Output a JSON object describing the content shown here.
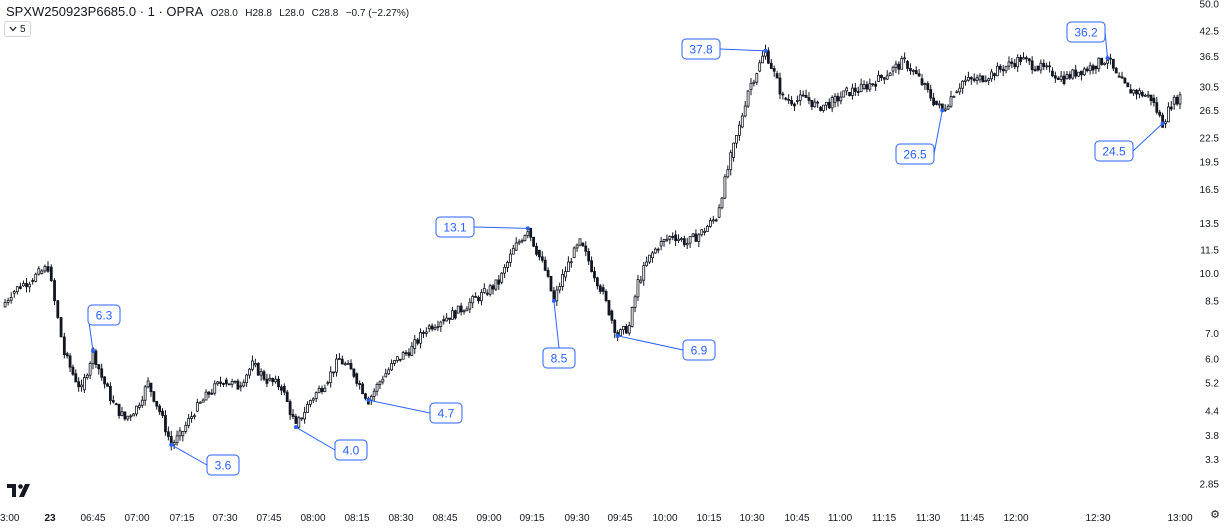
{
  "legend": {
    "symbol": "SPXW250923P6685.0 · 1 · OPRA",
    "o_label": "O",
    "o": "28.0",
    "h_label": "H",
    "h": "28.8",
    "l_label": "L",
    "l": "28.0",
    "c_label": "C",
    "c": "28.8",
    "change": "−0.7 (−2.27%)"
  },
  "indicator_toggle": {
    "label": "5",
    "icon": "chevron-down-icon"
  },
  "colors": {
    "candle": "#131722",
    "callout": "#2962ff",
    "axis_text": "#131722"
  },
  "chart_data": {
    "type": "candlestick",
    "y_scale": "log",
    "ylim": [
      2.7,
      50.0
    ],
    "y_ticks": [
      "50.0",
      "42.5",
      "36.5",
      "30.5",
      "26.5",
      "22.5",
      "19.5",
      "16.5",
      "13.5",
      "11.5",
      "10.0",
      "8.5",
      "7.0",
      "6.0",
      "5.2",
      "4.4",
      "3.8",
      "3.3",
      "2.85"
    ],
    "x_ticks": [
      "3:00",
      "23",
      "06:45",
      "07:00",
      "07:15",
      "07:30",
      "07:45",
      "08:00",
      "08:15",
      "08:30",
      "08:45",
      "09:00",
      "09:15",
      "09:30",
      "09:45",
      "10:00",
      "10:15",
      "10:30",
      "10:45",
      "11:00",
      "11:15",
      "11:30",
      "11:45",
      "12:00",
      "12:30",
      "13:00"
    ],
    "path": [
      [
        "03:00",
        8.2
      ],
      [
        "03:03",
        8.9
      ],
      [
        "03:06",
        9.3
      ],
      [
        "03:09",
        9.6
      ],
      [
        "03:12",
        10.0
      ],
      [
        "03:15",
        10.4
      ],
      [
        "06:35",
        6.2
      ],
      [
        "06:38",
        5.5
      ],
      [
        "06:41",
        5.0
      ],
      [
        "06:45",
        6.3
      ],
      [
        "06:48",
        5.4
      ],
      [
        "06:52",
        4.6
      ],
      [
        "06:56",
        4.2
      ],
      [
        "07:00",
        4.5
      ],
      [
        "07:04",
        5.2
      ],
      [
        "07:08",
        4.4
      ],
      [
        "07:12",
        3.6
      ],
      [
        "07:15",
        3.8
      ],
      [
        "07:20",
        4.4
      ],
      [
        "07:25",
        4.9
      ],
      [
        "07:30",
        5.3
      ],
      [
        "07:35",
        5.1
      ],
      [
        "07:40",
        5.8
      ],
      [
        "07:45",
        5.3
      ],
      [
        "07:50",
        5.1
      ],
      [
        "07:55",
        4.0
      ],
      [
        "08:00",
        4.7
      ],
      [
        "08:05",
        5.2
      ],
      [
        "08:10",
        6.0
      ],
      [
        "08:15",
        5.5
      ],
      [
        "08:20",
        4.7
      ],
      [
        "08:25",
        5.4
      ],
      [
        "08:30",
        6.0
      ],
      [
        "08:35",
        6.4
      ],
      [
        "08:40",
        7.2
      ],
      [
        "08:45",
        7.6
      ],
      [
        "08:50",
        7.9
      ],
      [
        "08:55",
        8.4
      ],
      [
        "09:00",
        8.9
      ],
      [
        "09:05",
        9.5
      ],
      [
        "09:10",
        11.5
      ],
      [
        "09:15",
        13.1
      ],
      [
        "09:18",
        11.5
      ],
      [
        "09:21",
        10.2
      ],
      [
        "09:24",
        8.5
      ],
      [
        "09:27",
        9.8
      ],
      [
        "09:30",
        11.0
      ],
      [
        "09:33",
        12.0
      ],
      [
        "09:36",
        10.8
      ],
      [
        "09:40",
        9.2
      ],
      [
        "09:43",
        8.0
      ],
      [
        "09:46",
        6.9
      ],
      [
        "09:50",
        7.3
      ],
      [
        "09:53",
        9.5
      ],
      [
        "09:57",
        11.0
      ],
      [
        "10:00",
        11.8
      ],
      [
        "10:05",
        12.6
      ],
      [
        "10:10",
        12.0
      ],
      [
        "10:15",
        12.8
      ],
      [
        "10:20",
        14.0
      ],
      [
        "10:25",
        20.0
      ],
      [
        "10:28",
        24.0
      ],
      [
        "10:31",
        30.0
      ],
      [
        "10:34",
        33.5
      ],
      [
        "10:37",
        37.8
      ],
      [
        "10:40",
        33.0
      ],
      [
        "10:43",
        28.5
      ],
      [
        "10:47",
        28.0
      ],
      [
        "10:51",
        28.6
      ],
      [
        "10:55",
        27.0
      ],
      [
        "11:00",
        27.8
      ],
      [
        "11:05",
        29.5
      ],
      [
        "11:10",
        30.2
      ],
      [
        "11:15",
        31.5
      ],
      [
        "11:20",
        33.5
      ],
      [
        "11:25",
        35.5
      ],
      [
        "11:30",
        32.0
      ],
      [
        "11:35",
        28.0
      ],
      [
        "11:38",
        26.5
      ],
      [
        "11:42",
        29.5
      ],
      [
        "11:45",
        31.5
      ],
      [
        "11:50",
        31.8
      ],
      [
        "11:55",
        33.0
      ],
      [
        "12:00",
        34.5
      ],
      [
        "12:05",
        36.0
      ],
      [
        "12:10",
        34.5
      ],
      [
        "12:15",
        33.5
      ],
      [
        "12:20",
        32.0
      ],
      [
        "12:25",
        33.5
      ],
      [
        "12:30",
        34.5
      ],
      [
        "12:35",
        36.2
      ],
      [
        "12:38",
        32.5
      ],
      [
        "12:42",
        30.0
      ],
      [
        "12:46",
        29.5
      ],
      [
        "12:50",
        28.5
      ],
      [
        "12:54",
        24.5
      ],
      [
        "12:57",
        27.5
      ],
      [
        "13:00",
        28.8
      ]
    ],
    "callouts": [
      {
        "time": "06:45",
        "price": 6.3,
        "label": "6.3",
        "side": "above"
      },
      {
        "time": "07:12",
        "price": 3.6,
        "label": "3.6",
        "side": "below"
      },
      {
        "time": "07:55",
        "price": 4.0,
        "label": "4.0",
        "side": "below"
      },
      {
        "time": "08:20",
        "price": 4.7,
        "label": "4.7",
        "side": "below"
      },
      {
        "time": "09:15",
        "price": 13.1,
        "label": "13.1",
        "side": "above"
      },
      {
        "time": "09:24",
        "price": 8.5,
        "label": "8.5",
        "side": "below"
      },
      {
        "time": "09:46",
        "price": 6.9,
        "label": "6.9",
        "side": "below"
      },
      {
        "time": "10:37",
        "price": 37.8,
        "label": "37.8",
        "side": "above"
      },
      {
        "time": "11:38",
        "price": 26.5,
        "label": "26.5",
        "side": "below"
      },
      {
        "time": "12:35",
        "price": 36.2,
        "label": "36.2",
        "side": "above"
      },
      {
        "time": "12:54",
        "price": 24.5,
        "label": "24.5",
        "side": "below"
      }
    ]
  }
}
